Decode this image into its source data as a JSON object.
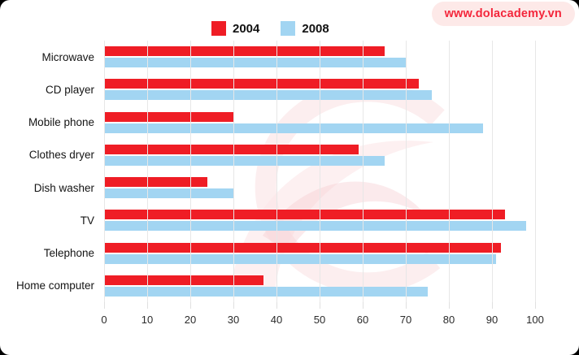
{
  "site_badge": {
    "url": "www.dolacademy.vn"
  },
  "theme": {
    "badge_bg": "#FDE9E8",
    "badge_text": "#F4263B",
    "gridline": "#E7E7E7",
    "watermark_pink": "#F8D9DB",
    "series_2004_red": "#EF1D25",
    "series_2008_blue": "#A2D5F2"
  },
  "chart_data": {
    "type": "bar",
    "orientation": "horizontal",
    "title": "",
    "xlabel": "",
    "ylabel": "",
    "categories": [
      "Microwave",
      "CD player",
      "Mobile phone",
      "Clothes dryer",
      "Dish washer",
      "TV",
      "Telephone",
      "Home computer"
    ],
    "series": [
      {
        "name": "2004",
        "color": "#EF1D25",
        "values": [
          65,
          73,
          30,
          59,
          24,
          93,
          92,
          37
        ]
      },
      {
        "name": "2008",
        "color": "#A2D5F2",
        "values": [
          70,
          76,
          88,
          65,
          30,
          98,
          91,
          75
        ]
      }
    ],
    "xlim": [
      0,
      100
    ],
    "ticks": [
      0,
      10,
      20,
      30,
      40,
      50,
      60,
      70,
      80,
      90,
      100
    ],
    "grid": true,
    "legend_position": "top-center"
  }
}
